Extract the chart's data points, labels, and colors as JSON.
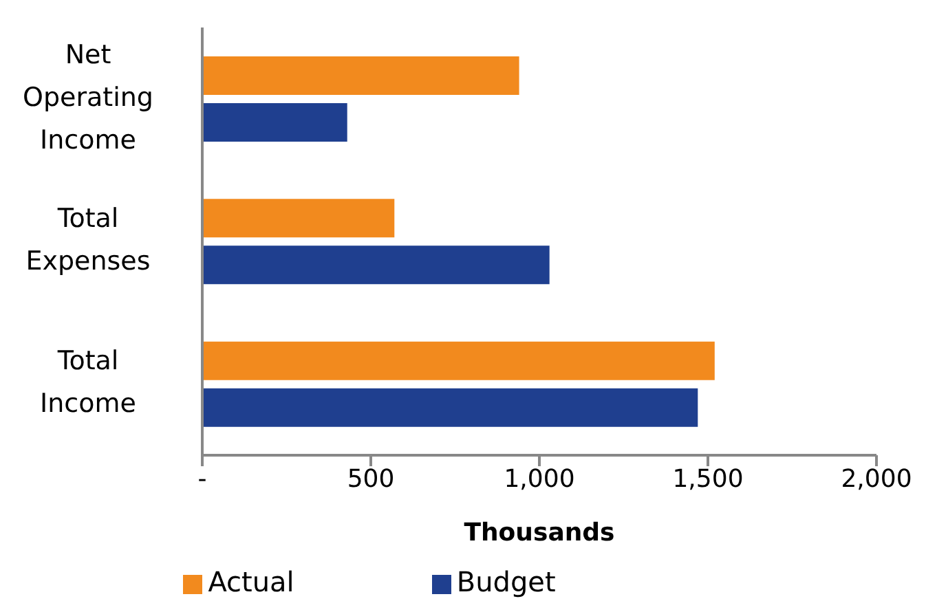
{
  "chart_data": {
    "type": "bar",
    "orientation": "horizontal",
    "xlabel": "Thousands",
    "categories": [
      "Net Operating Income",
      "Total Expenses",
      "Total Income"
    ],
    "series": [
      {
        "name": "Actual",
        "color": "#f28a1e",
        "values": [
          940,
          570,
          1520
        ]
      },
      {
        "name": "Budget",
        "color": "#1f3f8f",
        "values": [
          430,
          1030,
          1470
        ]
      }
    ],
    "xlim": [
      0,
      2000
    ],
    "xticks": [
      {
        "value": 0,
        "label": "-"
      },
      500,
      {
        "value": 1000,
        "label": "1,000"
      },
      {
        "value": 1500,
        "label": "1,500"
      },
      {
        "value": 2000,
        "label": "2,000"
      }
    ],
    "grid": false,
    "legend": "bottom"
  }
}
